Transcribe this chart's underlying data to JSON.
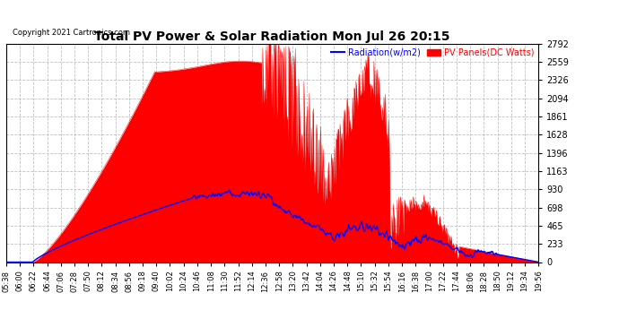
{
  "title": "Total PV Power & Solar Radiation Mon Jul 26 20:15",
  "copyright": "Copyright 2021 Cartronics.com",
  "legend_radiation": "Radiation(w/m2)",
  "legend_pv": "PV Panels(DC Watts)",
  "radiation_color": "blue",
  "pv_color": "red",
  "bg_color": "#ffffff",
  "plot_bg_color": "#ffffff",
  "grid_color": "#bbbbbb",
  "title_color": "black",
  "ymin": 0.0,
  "ymax": 2791.6,
  "yticks": [
    0.0,
    232.6,
    465.3,
    697.9,
    930.5,
    1163.2,
    1395.8,
    1628.4,
    1861.1,
    2093.7,
    2326.3,
    2559.0,
    2791.6
  ],
  "x_labels": [
    "05:38",
    "06:00",
    "06:22",
    "06:44",
    "07:06",
    "07:28",
    "07:50",
    "08:12",
    "08:34",
    "08:56",
    "09:18",
    "09:40",
    "10:02",
    "10:24",
    "10:46",
    "11:08",
    "11:30",
    "11:52",
    "12:14",
    "12:36",
    "12:58",
    "13:20",
    "13:42",
    "14:04",
    "14:26",
    "14:48",
    "15:10",
    "15:32",
    "15:54",
    "16:16",
    "16:38",
    "17:00",
    "17:22",
    "17:44",
    "18:06",
    "18:28",
    "18:50",
    "19:12",
    "19:34",
    "19:56"
  ]
}
